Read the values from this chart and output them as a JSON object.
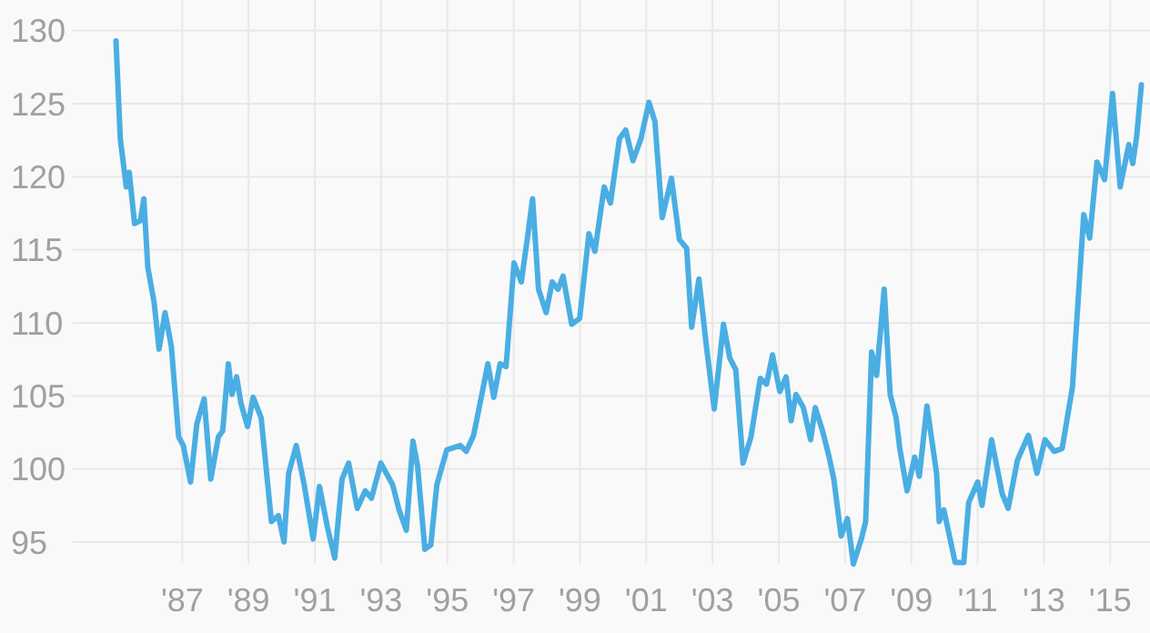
{
  "chart_data": {
    "type": "line",
    "xlim": [
      1981.5,
      2016.2
    ],
    "ylim": [
      93.5,
      132.1
    ],
    "xticks": [
      {
        "value": 1987,
        "label": "'87"
      },
      {
        "value": 1989,
        "label": "'89"
      },
      {
        "value": 1991,
        "label": "'91"
      },
      {
        "value": 1993,
        "label": "'93"
      },
      {
        "value": 1995,
        "label": "'95"
      },
      {
        "value": 1997,
        "label": "'97"
      },
      {
        "value": 1999,
        "label": "'99"
      },
      {
        "value": 2001,
        "label": "'01"
      },
      {
        "value": 2003,
        "label": "'03"
      },
      {
        "value": 2005,
        "label": "'05"
      },
      {
        "value": 2007,
        "label": "'07"
      },
      {
        "value": 2009,
        "label": "'09"
      },
      {
        "value": 2011,
        "label": "'11"
      },
      {
        "value": 2013,
        "label": "'13"
      },
      {
        "value": 2015,
        "label": "'15"
      }
    ],
    "yticks": [
      95,
      100,
      105,
      110,
      115,
      120,
      125,
      130
    ],
    "grid": true,
    "marker": "none",
    "line_style": "solid",
    "x": [
      1985.0,
      1985.13,
      1985.31,
      1985.4,
      1985.56,
      1985.74,
      1985.84,
      1985.96,
      1986.15,
      1986.3,
      1986.48,
      1986.67,
      1986.89,
      1987.03,
      1987.25,
      1987.44,
      1987.66,
      1987.86,
      1988.09,
      1988.22,
      1988.39,
      1988.5,
      1988.64,
      1988.77,
      1988.97,
      1989.14,
      1989.38,
      1989.69,
      1989.9,
      1990.07,
      1990.21,
      1990.44,
      1990.68,
      1990.95,
      1991.14,
      1991.38,
      1991.6,
      1991.82,
      1992.02,
      1992.28,
      1992.52,
      1992.71,
      1992.99,
      1993.35,
      1993.54,
      1993.76,
      1993.96,
      1994.1,
      1994.32,
      1994.5,
      1994.68,
      1994.98,
      1995.39,
      1995.57,
      1995.79,
      1996.04,
      1996.22,
      1996.4,
      1996.59,
      1996.77,
      1997.01,
      1997.23,
      1997.42,
      1997.57,
      1997.75,
      1997.98,
      1998.16,
      1998.34,
      1998.49,
      1998.75,
      1998.99,
      1999.27,
      1999.45,
      1999.73,
      1999.92,
      2000.19,
      2000.38,
      2000.6,
      2000.84,
      2001.08,
      2001.26,
      2001.48,
      2001.76,
      2002.0,
      2002.22,
      2002.37,
      2002.59,
      2002.81,
      2003.05,
      2003.33,
      2003.52,
      2003.7,
      2003.92,
      2004.16,
      2004.44,
      2004.63,
      2004.81,
      2005.03,
      2005.22,
      2005.37,
      2005.52,
      2005.74,
      2005.96,
      2006.1,
      2006.32,
      2006.51,
      2006.66,
      2006.88,
      2007.07,
      2007.25,
      2007.49,
      2007.62,
      2007.8,
      2007.95,
      2008.18,
      2008.36,
      2008.54,
      2008.65,
      2008.87,
      2009.1,
      2009.24,
      2009.47,
      2009.76,
      2009.84,
      2009.98,
      2010.32,
      2010.58,
      2010.73,
      2011.0,
      2011.13,
      2011.42,
      2011.74,
      2011.92,
      2012.2,
      2012.53,
      2012.79,
      2013.03,
      2013.31,
      2013.55,
      2013.86,
      2014.2,
      2014.38,
      2014.6,
      2014.83,
      2015.07,
      2015.3,
      2015.56,
      2015.68,
      2015.8,
      2015.94
    ],
    "series": [
      {
        "color": "#4aaee3",
        "values": [
          129.3,
          122.6,
          119.3,
          120.3,
          116.8,
          117.0,
          118.5,
          113.8,
          111.4,
          108.2,
          110.7,
          108.4,
          102.2,
          101.6,
          99.1,
          103.1,
          104.8,
          99.3,
          102.2,
          102.6,
          107.2,
          105.1,
          106.3,
          104.5,
          102.9,
          104.9,
          103.5,
          96.4,
          96.8,
          95.0,
          99.7,
          101.6,
          98.9,
          95.2,
          98.8,
          96.0,
          93.9,
          99.3,
          100.4,
          97.3,
          98.5,
          98.0,
          100.4,
          98.9,
          97.2,
          95.8,
          101.9,
          100.2,
          94.5,
          94.8,
          98.9,
          101.3,
          101.6,
          101.2,
          102.3,
          105.1,
          107.2,
          104.9,
          107.2,
          107.0,
          114.1,
          112.8,
          115.9,
          118.5,
          112.3,
          110.7,
          112.8,
          112.3,
          113.2,
          109.9,
          110.3,
          116.1,
          114.9,
          119.3,
          118.2,
          122.6,
          123.2,
          121.1,
          122.6,
          125.1,
          123.8,
          117.2,
          119.9,
          115.7,
          115.1,
          109.7,
          113.0,
          108.5,
          104.1,
          109.9,
          107.6,
          106.8,
          100.4,
          102.2,
          106.2,
          105.8,
          107.8,
          105.3,
          106.3,
          103.3,
          105.1,
          104.2,
          102.0,
          104.2,
          102.6,
          100.9,
          99.3,
          95.4,
          96.6,
          93.5,
          95.2,
          96.4,
          108.0,
          106.4,
          112.3,
          105.1,
          103.5,
          101.4,
          98.5,
          100.8,
          99.5,
          104.3,
          99.7,
          96.4,
          97.2,
          93.6,
          93.6,
          97.7,
          99.1,
          97.5,
          102.0,
          98.3,
          97.3,
          100.6,
          102.3,
          99.7,
          102.0,
          101.2,
          101.4,
          105.6,
          117.4,
          115.8,
          121.0,
          119.8,
          125.7,
          119.3,
          122.2,
          120.9,
          122.8,
          126.3
        ]
      }
    ]
  }
}
